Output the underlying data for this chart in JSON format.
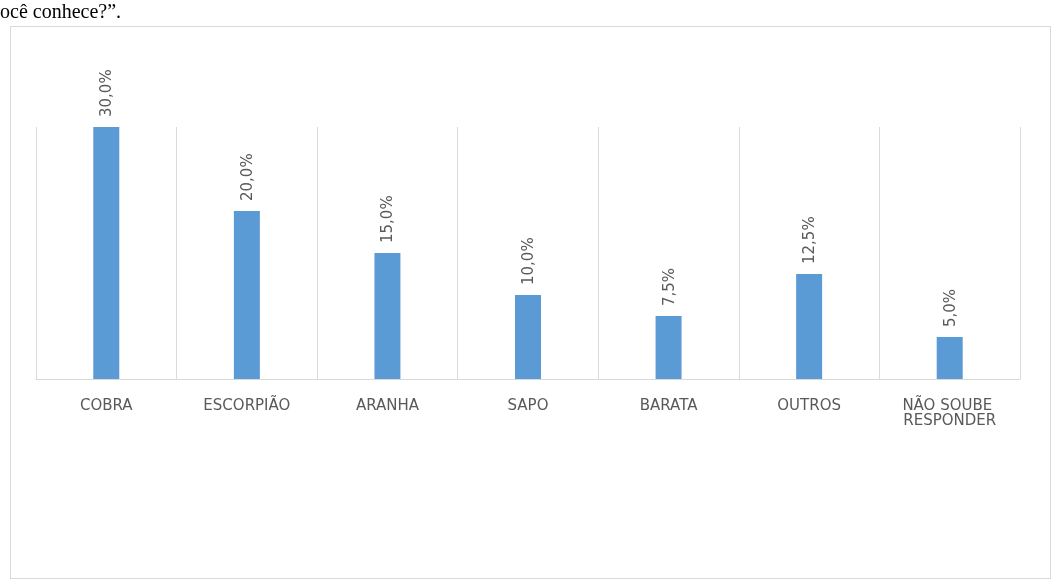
{
  "chart_data": {
    "type": "bar",
    "annotations": [
      "ocê conhece?”."
    ],
    "categories": [
      "COBRA",
      "ESCORPIÃO",
      "ARANHA",
      "SAPO",
      "BARATA",
      "OUTROS",
      "NÃO SOUBE RESPONDER"
    ],
    "values": [
      30,
      20,
      15,
      10,
      7.5,
      12.5,
      5
    ],
    "value_labels": [
      "30,0%",
      "20,0%",
      "15,0%",
      "10,0%",
      "7,5%",
      "12,5%",
      "5,0%"
    ],
    "color": "#5b9bd5",
    "grid": "x"
  }
}
